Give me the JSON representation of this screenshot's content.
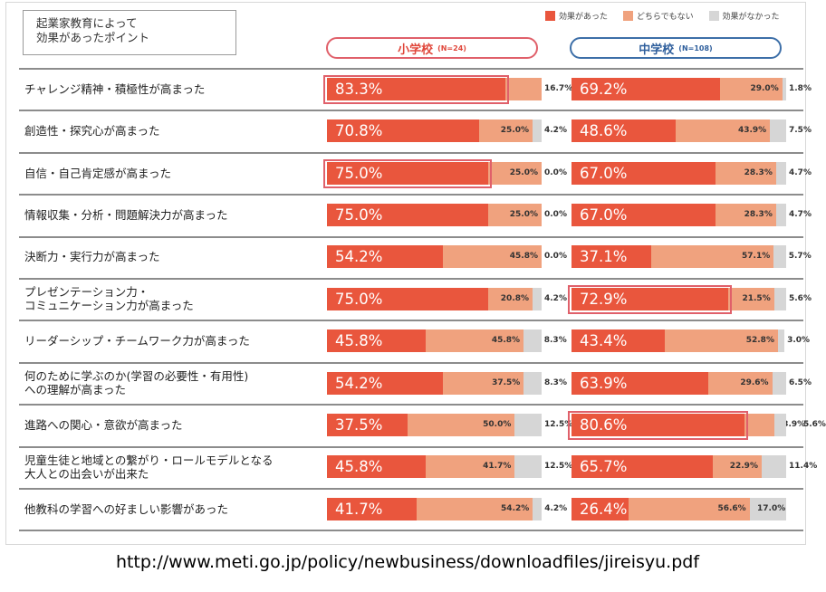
{
  "title_lines": [
    "起業家教育によって",
    "効果があったポイント"
  ],
  "colors": {
    "effective": "#e9563d",
    "neutral": "#f0a27e",
    "none": "#d6d6d6",
    "sho_border": "#e0606a",
    "chu_border": "#3d6fa8",
    "highlight": "#e0606a"
  },
  "legend": [
    {
      "key": "effective",
      "label": "効果があった"
    },
    {
      "key": "neutral",
      "label": "どちらでもない"
    },
    {
      "key": "none",
      "label": "効果がなかった"
    }
  ],
  "groups": [
    {
      "label": "小学校",
      "n": "(N=24)"
    },
    {
      "label": "中学校",
      "n": "(N=108)"
    }
  ],
  "source": "http://www.meti.go.jp/policy/newbusiness/downloadfiles/jireisyu.pdf",
  "chart_data": {
    "type": "bar",
    "stacked": true,
    "orientation": "horizontal",
    "unit": "%",
    "categories": [
      "チャレンジ精神・積極性が高まった",
      "創造性・探究心が高まった",
      "自信・自己肯定感が高まった",
      "情報収集・分析・問題解決力が高まった",
      "決断力・実行力が高まった",
      "プレゼンテーション力・\nコミュニケーション力が高まった",
      "リーダーシップ・チームワーク力が高まった",
      "何のために学ぶのか(学習の必要性・有用性)\nへの理解が高まった",
      "進路への関心・意欲が高まった",
      "児童生徒と地域との繋がり・ロールモデルとなる\n大人との出会いが出来た",
      "他教科の学習への好ましい影響があった"
    ],
    "series_names": [
      "効果があった",
      "どちらでもない",
      "効果がなかった"
    ],
    "groups": [
      {
        "name": "小学校",
        "effective": [
          83.3,
          70.8,
          75.0,
          75.0,
          54.2,
          75.0,
          45.8,
          54.2,
          37.5,
          45.8,
          41.7
        ],
        "neutral": [
          16.7,
          25.0,
          25.0,
          25.0,
          45.8,
          20.8,
          45.8,
          37.5,
          50.0,
          41.7,
          54.2
        ],
        "none": [
          0.0,
          4.2,
          0.0,
          0.0,
          0.0,
          4.2,
          8.3,
          8.3,
          12.5,
          12.5,
          4.2
        ],
        "effective_labels": [
          "83.3%",
          "70.8%",
          "75.0%",
          "75.0%",
          "54.2%",
          "75.0%",
          "45.8%",
          "54.2%",
          "37.5%",
          "45.8%",
          "41.7%"
        ],
        "neutral_labels": [
          "16.7%",
          "25.0%",
          "25.0%",
          "25.0%",
          "45.8%",
          "20.8%",
          "45.8%",
          "37.5%",
          "50.0%",
          "41.7%",
          "54.2%"
        ],
        "none_labels": [
          "0.0%",
          "4.2%",
          "0.0%",
          "0.0%",
          "0.0%",
          "4.2%",
          "8.3%",
          "8.3%",
          "12.5%",
          "12.5%",
          "4.2%"
        ],
        "highlighted_rows": [
          0,
          2
        ]
      },
      {
        "name": "中学校",
        "effective": [
          69.2,
          48.6,
          67.0,
          67.0,
          37.1,
          72.9,
          43.4,
          63.9,
          80.6,
          65.7,
          26.4
        ],
        "neutral": [
          29.0,
          43.9,
          28.3,
          28.3,
          57.1,
          21.5,
          52.8,
          29.6,
          13.9,
          22.9,
          56.6
        ],
        "none": [
          1.8,
          7.5,
          4.7,
          4.7,
          5.7,
          5.6,
          3.0,
          6.5,
          5.6,
          11.4,
          17.0
        ],
        "effective_labels": [
          "69.2%",
          "48.6%",
          "67.0%",
          "67.0%",
          "37.1%",
          "72.9%",
          "43.4%",
          "63.9%",
          "80.6%",
          "65.7%",
          "26.4%"
        ],
        "neutral_labels": [
          "29.0%",
          "43.9%",
          "28.3%",
          "28.3%",
          "57.1%",
          "21.5%",
          "52.8%",
          "29.6%",
          "13.9%",
          "22.9%",
          "56.6%"
        ],
        "none_labels": [
          "1.8%",
          "7.5%",
          "4.7%",
          "4.7%",
          "5.7%",
          "5.6%",
          "3.0%",
          "6.5%",
          "5.6%",
          "11.4%",
          "17.0%"
        ],
        "highlighted_rows": [
          5,
          8
        ]
      }
    ]
  }
}
